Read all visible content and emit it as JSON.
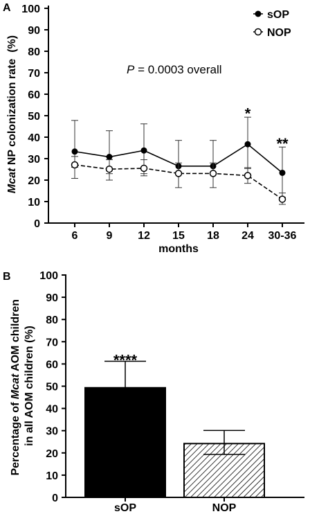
{
  "chart_data": [
    {
      "panel": "A",
      "type": "line",
      "x_categories": [
        "6",
        "9",
        "12",
        "15",
        "18",
        "24",
        "30-36"
      ],
      "xlabel": "months",
      "ylabel_italic": "Mcat",
      "ylabel_rest": " NP colonization rate  (%)",
      "ylim": [
        0,
        100
      ],
      "yticks": [
        "0",
        "10",
        "20",
        "30",
        "40",
        "50",
        "60",
        "70",
        "80",
        "90",
        "100"
      ],
      "annotation_italic": "P",
      "annotation_rest": " = 0.0003 overall",
      "legend_position": "top-right",
      "series": [
        {
          "name": "sOP",
          "marker": "filled-circle",
          "line": "solid",
          "values": [
            33.3,
            30.8,
            33.8,
            26.5,
            26.5,
            36.7,
            23.4
          ],
          "error_upper": [
            47.8,
            43.0,
            46.2,
            38.5,
            38.5,
            49.3,
            35.4
          ],
          "error_lower": [
            26.0,
            23.0,
            23.0,
            23.0,
            23.0,
            25.4,
            12.0
          ]
        },
        {
          "name": "NOP",
          "marker": "open-circle",
          "line": "dashed",
          "values": [
            27.1,
            25.1,
            25.5,
            23.1,
            23.1,
            22.1,
            11.1
          ],
          "error_upper": [
            31.0,
            29.5,
            29.5,
            28.0,
            28.0,
            25.8,
            14.0
          ],
          "error_lower": [
            20.8,
            20.0,
            22.0,
            16.5,
            16.5,
            18.5,
            8.7
          ]
        }
      ],
      "significance": [
        {
          "x": "24",
          "label": "*",
          "y": 53
        },
        {
          "x": "30-36",
          "label": "**",
          "y": 39
        }
      ]
    },
    {
      "panel": "B",
      "type": "bar",
      "categories": [
        "sOP",
        "NOP"
      ],
      "values": [
        49.3,
        24.2
      ],
      "error_upper": [
        61.2,
        30.1
      ],
      "error_lower": [
        49.3,
        19.3
      ],
      "bar_fill": [
        "solid-black",
        "diagonal-hatch"
      ],
      "ylabel_line1_pre": "Percentage of ",
      "ylabel_line1_italic": "Mcat",
      "ylabel_line1_post": " AOM children",
      "ylabel_line2": "in all AOM children (%)",
      "ylim": [
        0,
        100
      ],
      "yticks": [
        "0",
        "10",
        "20",
        "30",
        "40",
        "50",
        "60",
        "70",
        "80",
        "90",
        "100"
      ],
      "significance": [
        {
          "x": "sOP",
          "label": "****",
          "y": 64
        }
      ]
    }
  ]
}
